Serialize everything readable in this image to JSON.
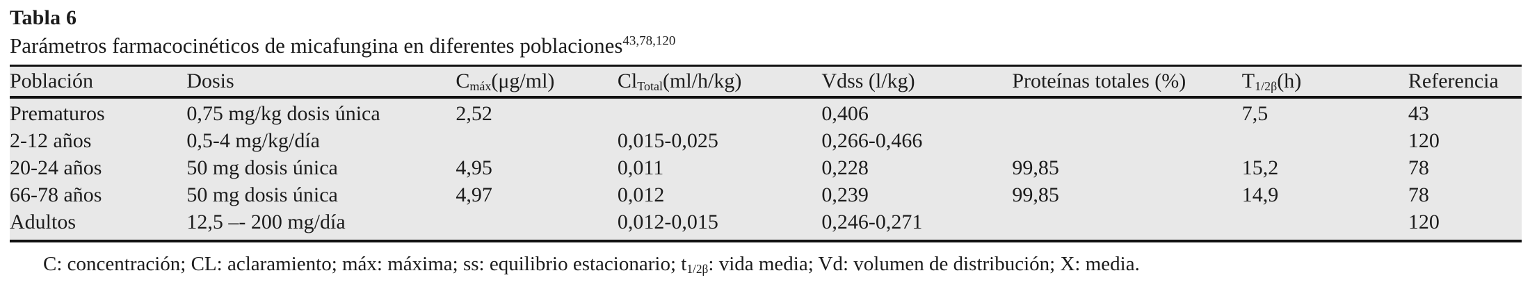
{
  "table_label": "Tabla 6",
  "caption": {
    "text": "Parámetros farmacocinéticos de micafungina en diferentes poblaciones",
    "refs": "43,78,120"
  },
  "columns": [
    {
      "pre": "Población",
      "sub": "",
      "post": ""
    },
    {
      "pre": "Dosis",
      "sub": "",
      "post": ""
    },
    {
      "pre": "C",
      "sub": "máx",
      "post": "(μg/ml)"
    },
    {
      "pre": "Cl",
      "sub": "Total",
      "post": "(ml/h/kg)"
    },
    {
      "pre": "Vdss (l/kg)",
      "sub": "",
      "post": ""
    },
    {
      "pre": "Proteínas totales (%)",
      "sub": "",
      "post": ""
    },
    {
      "pre": "T",
      "sub": "1/2β",
      "post": "(h)"
    },
    {
      "pre": "Referencia",
      "sub": "",
      "post": ""
    }
  ],
  "rows": [
    [
      "Prematuros",
      "0,75 mg/kg dosis única",
      "2,52",
      "",
      "0,406",
      "",
      "7,5",
      "43"
    ],
    [
      "2-12 años",
      "0,5-4 mg/kg/día",
      "",
      "0,015-0,025",
      "0,266-0,466",
      "",
      "",
      "120"
    ],
    [
      "20-24 años",
      "50 mg dosis única",
      "4,95",
      "0,011",
      "0,228",
      "99,85",
      "15,2",
      "78"
    ],
    [
      "66-78 años",
      "50 mg dosis única",
      "4,97",
      "0,012",
      "0,239",
      "99,85",
      "14,9",
      "78"
    ],
    [
      "Adultos",
      "12,5 –- 200 mg/día",
      "",
      "0,012-0,015",
      "0,246-0,271",
      "",
      "",
      "120"
    ]
  ],
  "footnote": {
    "pre": "C: concentración; CL: aclaramiento; máx: máxima; ss: equilibrio estacionario; t",
    "sub": "1/2β",
    "post": ": vida media; Vd: volumen de distribución; X: media."
  },
  "colors": {
    "text": "#1c1c1c",
    "rule": "#111111",
    "table_band": "#e8e8e8",
    "page_background": "#ffffff"
  }
}
